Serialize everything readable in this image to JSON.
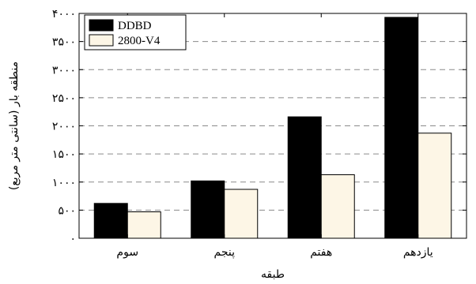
{
  "chart_data": {
    "type": "bar",
    "categories": [
      "سوم",
      "پنجم",
      "هفتم",
      "یازدهم"
    ],
    "series": [
      {
        "name": "DDBD",
        "values": [
          620,
          1020,
          2160,
          3930
        ],
        "color": "#000000"
      },
      {
        "name": "2800-V4",
        "values": [
          470,
          870,
          1130,
          1870
        ],
        "color": "#fdf6e6"
      }
    ],
    "yticks": [
      0,
      500,
      1000,
      1500,
      2000,
      2500,
      3000,
      3500,
      4000
    ],
    "ytick_labels": [
      "۰",
      "۵۰۰",
      "۱۰۰۰",
      "۱۵۰۰",
      "۲۰۰۰",
      "۲۵۰۰",
      "۳۰۰۰",
      "۳۵۰۰",
      "۴۰۰۰"
    ],
    "ylim": [
      0,
      4000
    ],
    "xlabel": "طبقه",
    "ylabel": "منطقه بار (سانتی متر مربع)",
    "grid": "y-dashed",
    "legend_position": "top-left"
  }
}
